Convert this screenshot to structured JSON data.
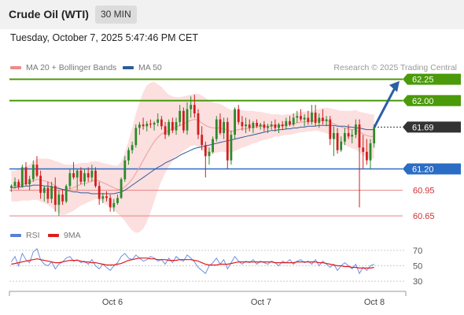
{
  "header": {
    "title": "Crude Oil (WTI)",
    "timeframe": "30 MIN",
    "timestamp": "Tuesday, October 7, 2025 5:47:46 PM CET"
  },
  "legend": {
    "items": [
      {
        "label": "MA 20 + Bollinger Bands",
        "color": "#f08a8a"
      },
      {
        "label": "MA 50",
        "color": "#2c5d9a"
      }
    ],
    "credit": "Research © 2025 Trading Central"
  },
  "rsi_legend": {
    "items": [
      {
        "label": "RSI",
        "color": "#5a7fd8"
      },
      {
        "label": "9MA",
        "color": "#e11a1a"
      }
    ]
  },
  "colors": {
    "up": "#2a8a2a",
    "down": "#d11e1e",
    "resistance": "#4a9a0a",
    "support": "#2b6cc4",
    "pivot_low": "#e88080",
    "current": "#333333",
    "arrow": "#2b5fa5",
    "band_fill": "#fbd9d9"
  },
  "chart_data": {
    "type": "candlestick",
    "title": "Crude Oil (WTI)",
    "timeframe": "30 MIN",
    "ylim": [
      60.55,
      62.33
    ],
    "x_ticks": [
      "Oct 6",
      "Oct 7",
      "Oct 8"
    ],
    "levels": [
      {
        "value": 62.25,
        "label": "62.25",
        "kind": "resistance"
      },
      {
        "value": 62.0,
        "label": "62.00",
        "kind": "resistance"
      },
      {
        "value": 61.69,
        "label": "61.69",
        "kind": "current"
      },
      {
        "value": 61.2,
        "label": "61.20",
        "kind": "pivot"
      },
      {
        "value": 60.95,
        "label": "60.95",
        "kind": "support"
      },
      {
        "value": 60.65,
        "label": "60.65",
        "kind": "support"
      }
    ],
    "candles": [
      [
        60.98,
        61.02,
        60.93,
        61.0
      ],
      [
        61.0,
        61.1,
        60.97,
        61.05
      ],
      [
        61.05,
        61.08,
        60.96,
        60.99
      ],
      [
        60.99,
        61.25,
        60.98,
        61.22
      ],
      [
        61.22,
        61.28,
        61.0,
        61.02
      ],
      [
        61.02,
        61.12,
        60.95,
        61.08
      ],
      [
        61.08,
        61.3,
        61.05,
        61.25
      ],
      [
        61.25,
        61.35,
        61.1,
        61.12
      ],
      [
        61.12,
        61.18,
        60.85,
        60.92
      ],
      [
        60.92,
        61.0,
        60.82,
        60.98
      ],
      [
        60.98,
        61.05,
        60.8,
        60.85
      ],
      [
        60.85,
        61.05,
        60.8,
        61.0
      ],
      [
        61.0,
        61.1,
        60.7,
        60.78
      ],
      [
        60.78,
        60.95,
        60.65,
        60.9
      ],
      [
        60.9,
        60.96,
        60.78,
        60.82
      ],
      [
        60.82,
        61.02,
        60.8,
        61.0
      ],
      [
        61.0,
        61.2,
        60.96,
        61.15
      ],
      [
        61.15,
        61.28,
        61.08,
        61.1
      ],
      [
        61.1,
        61.2,
        60.95,
        61.18
      ],
      [
        61.18,
        61.22,
        61.02,
        61.05
      ],
      [
        61.05,
        61.2,
        61.0,
        61.15
      ],
      [
        61.15,
        61.22,
        61.05,
        61.1
      ],
      [
        61.1,
        61.25,
        61.05,
        61.18
      ],
      [
        61.18,
        61.22,
        60.98,
        61.0
      ],
      [
        61.0,
        61.05,
        60.78,
        60.85
      ],
      [
        60.85,
        60.92,
        60.8,
        60.88
      ],
      [
        60.88,
        60.94,
        60.82,
        60.86
      ],
      [
        60.86,
        60.9,
        60.7,
        60.75
      ],
      [
        60.75,
        60.85,
        60.7,
        60.8
      ],
      [
        60.8,
        60.9,
        60.78,
        60.86
      ],
      [
        60.86,
        61.1,
        60.85,
        61.08
      ],
      [
        61.08,
        61.35,
        61.05,
        61.3
      ],
      [
        61.3,
        61.45,
        61.25,
        61.42
      ],
      [
        61.42,
        61.52,
        61.38,
        61.48
      ],
      [
        61.48,
        61.72,
        61.45,
        61.68
      ],
      [
        61.68,
        61.75,
        61.6,
        61.72
      ],
      [
        61.72,
        61.8,
        61.66,
        61.7
      ],
      [
        61.7,
        61.76,
        61.64,
        61.73
      ],
      [
        61.73,
        61.78,
        61.68,
        61.72
      ],
      [
        61.72,
        61.76,
        61.65,
        61.74
      ],
      [
        61.74,
        61.85,
        61.7,
        61.78
      ],
      [
        61.78,
        61.82,
        61.66,
        61.7
      ],
      [
        61.7,
        61.75,
        61.55,
        61.6
      ],
      [
        61.6,
        61.78,
        61.58,
        61.75
      ],
      [
        61.75,
        61.8,
        61.62,
        61.65
      ],
      [
        61.65,
        61.8,
        61.6,
        61.75
      ],
      [
        61.75,
        61.95,
        61.7,
        61.88
      ],
      [
        61.88,
        61.92,
        61.62,
        61.65
      ],
      [
        61.65,
        61.98,
        61.6,
        61.9
      ],
      [
        61.9,
        62.05,
        61.8,
        61.95
      ],
      [
        61.95,
        62.07,
        61.8,
        61.85
      ],
      [
        61.85,
        61.9,
        61.55,
        61.6
      ],
      [
        61.6,
        61.7,
        61.42,
        61.48
      ],
      [
        61.48,
        61.52,
        61.1,
        61.35
      ],
      [
        61.35,
        61.45,
        61.25,
        61.4
      ],
      [
        61.4,
        61.58,
        61.38,
        61.55
      ],
      [
        61.55,
        61.82,
        61.52,
        61.78
      ],
      [
        61.78,
        61.85,
        61.6,
        61.62
      ],
      [
        61.62,
        61.8,
        61.55,
        61.75
      ],
      [
        61.75,
        61.8,
        61.2,
        61.3
      ],
      [
        61.3,
        61.65,
        61.25,
        61.6
      ],
      [
        61.6,
        61.92,
        61.55,
        61.9
      ],
      [
        61.9,
        61.95,
        61.72,
        61.75
      ],
      [
        61.75,
        61.82,
        61.65,
        61.7
      ],
      [
        61.7,
        61.8,
        61.62,
        61.72
      ],
      [
        61.72,
        61.78,
        61.64,
        61.68
      ],
      [
        61.68,
        61.76,
        61.62,
        61.74
      ],
      [
        61.74,
        61.78,
        61.68,
        61.7
      ],
      [
        61.7,
        61.74,
        61.66,
        61.72
      ],
      [
        61.72,
        61.76,
        61.64,
        61.68
      ],
      [
        61.68,
        61.73,
        61.62,
        61.7
      ],
      [
        61.7,
        61.76,
        61.66,
        61.72
      ],
      [
        61.72,
        61.78,
        61.64,
        61.68
      ],
      [
        61.68,
        61.74,
        61.62,
        61.72
      ],
      [
        61.72,
        61.76,
        61.66,
        61.7
      ],
      [
        61.7,
        61.8,
        61.66,
        61.76
      ],
      [
        61.76,
        61.82,
        61.7,
        61.72
      ],
      [
        61.72,
        61.85,
        61.7,
        61.8
      ],
      [
        61.8,
        61.88,
        61.74,
        61.82
      ],
      [
        61.82,
        61.9,
        61.76,
        61.78
      ],
      [
        61.78,
        61.84,
        61.7,
        61.8
      ],
      [
        61.8,
        61.88,
        61.72,
        61.75
      ],
      [
        61.75,
        61.95,
        61.72,
        61.86
      ],
      [
        61.86,
        61.95,
        61.7,
        61.74
      ],
      [
        61.74,
        61.85,
        61.68,
        61.8
      ],
      [
        61.8,
        61.9,
        61.72,
        61.76
      ],
      [
        61.76,
        61.82,
        61.7,
        61.78
      ],
      [
        61.78,
        61.82,
        61.48,
        61.55
      ],
      [
        61.55,
        61.7,
        61.35,
        61.62
      ],
      [
        61.62,
        61.68,
        61.38,
        61.42
      ],
      [
        61.42,
        61.58,
        61.4,
        61.52
      ],
      [
        61.52,
        61.68,
        61.48,
        61.62
      ],
      [
        61.62,
        61.72,
        61.55,
        61.58
      ],
      [
        61.58,
        61.66,
        61.5,
        61.6
      ],
      [
        61.6,
        61.78,
        61.56,
        61.72
      ],
      [
        61.72,
        61.78,
        60.75,
        61.45
      ],
      [
        61.45,
        61.6,
        61.2,
        61.4
      ],
      [
        61.4,
        61.55,
        61.25,
        61.3
      ],
      [
        61.3,
        61.55,
        61.2,
        61.5
      ],
      [
        61.5,
        61.72,
        61.45,
        61.69
      ]
    ],
    "rsi": {
      "ylim": [
        25,
        75
      ],
      "ticks": [
        70,
        50,
        30
      ],
      "rsi": [
        55,
        62,
        50,
        66,
        58,
        54,
        68,
        72,
        58,
        52,
        50,
        55,
        46,
        52,
        55,
        60,
        62,
        56,
        58,
        54,
        56,
        52,
        58,
        50,
        46,
        52,
        48,
        44,
        50,
        54,
        62,
        66,
        60,
        58,
        64,
        60,
        56,
        58,
        62,
        60,
        56,
        58,
        52,
        60,
        54,
        62,
        58,
        56,
        64,
        60,
        55,
        48,
        44,
        40,
        50,
        54,
        60,
        52,
        58,
        46,
        54,
        62,
        56,
        52,
        56,
        54,
        58,
        52,
        56,
        54,
        52,
        56,
        54,
        50,
        56,
        54,
        58,
        52,
        56,
        58,
        54,
        56,
        52,
        58,
        50,
        56,
        52,
        48,
        52,
        44,
        50,
        54,
        50,
        46,
        52,
        40,
        48,
        44,
        50,
        52
      ],
      "ma": [
        52,
        53,
        54,
        55,
        56,
        57,
        58,
        59,
        58,
        57,
        56,
        55,
        54,
        54,
        55,
        56,
        57,
        57,
        57,
        56,
        55,
        55,
        54,
        54,
        53,
        52,
        51,
        51,
        51,
        52,
        53,
        55,
        57,
        58,
        59,
        60,
        60,
        60,
        59,
        59,
        58,
        58,
        58,
        57,
        57,
        57,
        58,
        58,
        58,
        58,
        57,
        56,
        54,
        52,
        51,
        51,
        51,
        52,
        52,
        52,
        53,
        54,
        55,
        55,
        55,
        55,
        55,
        55,
        55,
        55,
        55,
        55,
        54,
        54,
        54,
        54,
        54,
        54,
        55,
        55,
        55,
        55,
        55,
        55,
        54,
        54,
        53,
        52,
        51,
        50,
        50,
        49,
        49,
        48,
        48,
        47,
        47,
        47,
        47,
        48
      ]
    },
    "ma20": [
      61.0,
      61.0,
      61.01,
      61.02,
      61.03,
      61.04,
      61.06,
      61.08,
      61.07,
      61.06,
      61.05,
      61.03,
      61.0,
      60.98,
      60.96,
      60.96,
      60.97,
      60.98,
      61.0,
      61.02,
      61.03,
      61.04,
      61.06,
      61.07,
      61.06,
      61.04,
      61.02,
      61.0,
      60.98,
      60.96,
      60.96,
      60.99,
      61.03,
      61.08,
      61.15,
      61.22,
      61.3,
      61.38,
      61.45,
      61.52,
      61.57,
      61.61,
      61.63,
      61.65,
      61.67,
      61.69,
      61.71,
      61.73,
      61.75,
      61.77,
      61.78,
      61.77,
      61.74,
      61.71,
      61.69,
      61.68,
      61.68,
      61.68,
      61.67,
      61.65,
      61.64,
      61.65,
      61.66,
      61.67,
      61.67,
      61.68,
      61.69,
      61.69,
      61.7,
      61.7,
      61.7,
      61.7,
      61.71,
      61.71,
      61.71,
      61.72,
      61.72,
      61.73,
      61.74,
      61.75,
      61.75,
      61.76,
      61.76,
      61.77,
      61.77,
      61.77,
      61.77,
      61.75,
      61.73,
      61.71,
      61.69,
      61.68,
      61.67,
      61.66,
      61.66,
      61.63,
      61.61,
      61.59,
      61.58,
      61.58
    ],
    "ma50": [
      60.98,
      60.98,
      60.99,
      60.99,
      61.0,
      61.0,
      61.01,
      61.01,
      61.01,
      61.0,
      61.0,
      60.99,
      60.98,
      60.97,
      60.96,
      60.95,
      60.94,
      60.93,
      60.93,
      60.92,
      60.92,
      60.92,
      60.91,
      60.91,
      60.91,
      60.91,
      60.91,
      60.91,
      60.91,
      60.92,
      60.93,
      60.95,
      60.98,
      61.01,
      61.04,
      61.07,
      61.1,
      61.13,
      61.16,
      61.19,
      61.22,
      61.24,
      61.27,
      61.29,
      61.31,
      61.33,
      61.36,
      61.38,
      61.4,
      61.42,
      61.44,
      61.45,
      61.46,
      61.47,
      61.48,
      61.49,
      61.5,
      61.51,
      61.52,
      61.53,
      61.54,
      61.55,
      61.56,
      61.57,
      61.58,
      61.59,
      61.6,
      61.61,
      61.62,
      61.63,
      61.64,
      61.65,
      61.65,
      61.66,
      61.66,
      61.67,
      61.67,
      61.68,
      61.68,
      61.69,
      61.69,
      61.7,
      61.7,
      61.7,
      61.71,
      61.71,
      61.71,
      61.71,
      61.71,
      61.7,
      61.7,
      61.7,
      61.69,
      61.69,
      61.68,
      61.68,
      61.67,
      61.66,
      61.66,
      61.66
    ],
    "bb_width": [
      0.18,
      0.18,
      0.19,
      0.19,
      0.2,
      0.21,
      0.22,
      0.24,
      0.25,
      0.26,
      0.27,
      0.28,
      0.29,
      0.3,
      0.3,
      0.29,
      0.28,
      0.27,
      0.26,
      0.25,
      0.24,
      0.23,
      0.23,
      0.22,
      0.22,
      0.23,
      0.24,
      0.25,
      0.26,
      0.28,
      0.32,
      0.4,
      0.5,
      0.6,
      0.7,
      0.76,
      0.8,
      0.8,
      0.76,
      0.7,
      0.62,
      0.55,
      0.48,
      0.42,
      0.38,
      0.35,
      0.33,
      0.32,
      0.31,
      0.3,
      0.3,
      0.31,
      0.32,
      0.32,
      0.31,
      0.3,
      0.29,
      0.28,
      0.27,
      0.26,
      0.25,
      0.24,
      0.23,
      0.22,
      0.21,
      0.2,
      0.19,
      0.18,
      0.17,
      0.16,
      0.15,
      0.14,
      0.13,
      0.13,
      0.12,
      0.12,
      0.12,
      0.12,
      0.12,
      0.12,
      0.12,
      0.12,
      0.12,
      0.12,
      0.13,
      0.14,
      0.15,
      0.16,
      0.17,
      0.18,
      0.19,
      0.2,
      0.21,
      0.22,
      0.23,
      0.24,
      0.25,
      0.26,
      0.26,
      0.26
    ]
  }
}
